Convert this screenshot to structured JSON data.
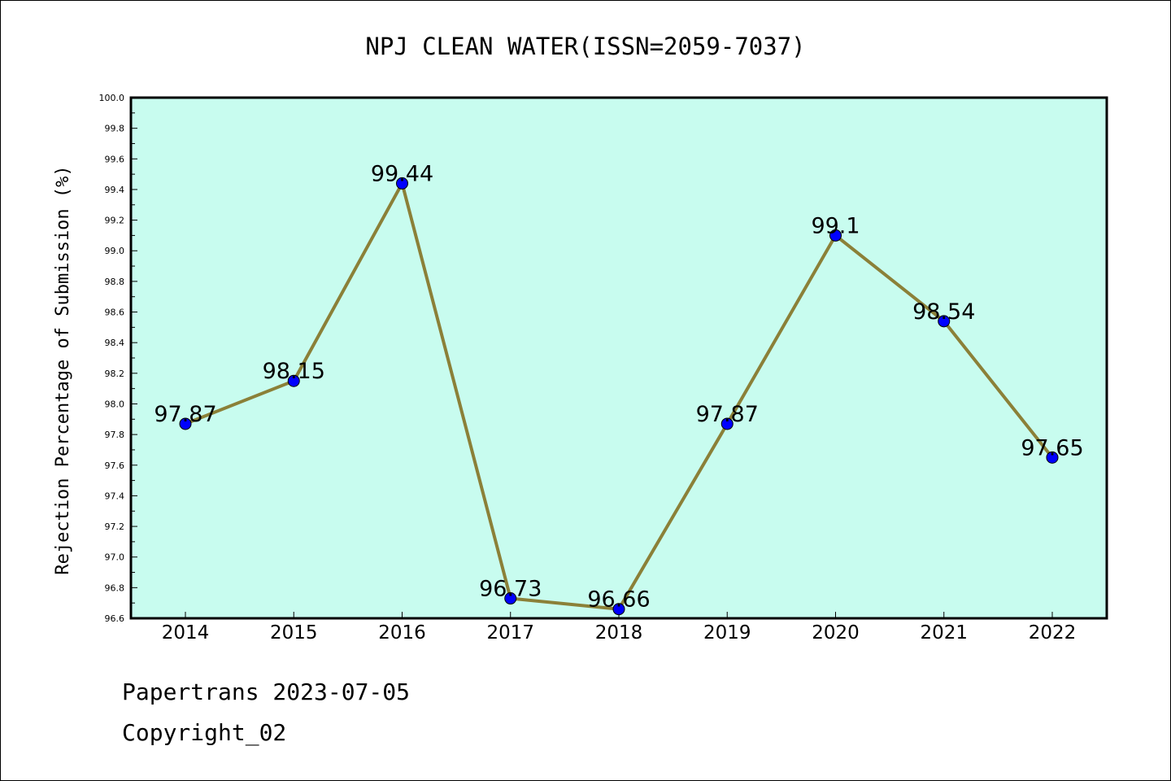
{
  "chart_data": {
    "type": "line",
    "title": "NPJ CLEAN WATER(ISSN=2059-7037)",
    "xlabel": "",
    "ylabel": "Rejection Percentage of Submission (%)",
    "categories": [
      "2014",
      "2015",
      "2016",
      "2017",
      "2018",
      "2019",
      "2020",
      "2021",
      "2022"
    ],
    "values": [
      97.87,
      98.15,
      99.44,
      96.73,
      96.66,
      97.87,
      99.1,
      98.54,
      97.65
    ],
    "data_labels": [
      "97.87",
      "98.15",
      "99.44",
      "96.73",
      "96.66",
      "97.87",
      "99.1",
      "98.54",
      "97.65"
    ],
    "ylim": [
      96.6,
      100.0
    ],
    "yticks": [
      "96.6",
      "96.8",
      "97.0",
      "97.2",
      "97.4",
      "97.6",
      "97.8",
      "98.0",
      "98.2",
      "98.4",
      "98.6",
      "98.8",
      "99.0",
      "99.2",
      "99.4",
      "99.6",
      "99.8",
      "100.0"
    ],
    "grid": false,
    "colors": {
      "plot_background": "#c8fcef",
      "line": "#8b8038",
      "marker": "#0000ff"
    }
  },
  "footer": {
    "line1": "Papertrans 2023-07-05",
    "line2": "Copyright_02"
  }
}
